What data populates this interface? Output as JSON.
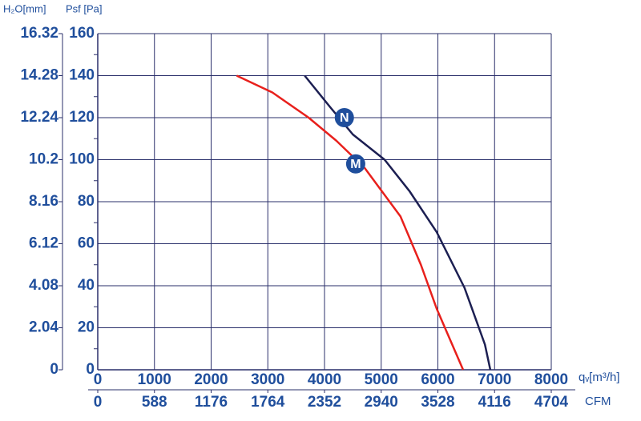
{
  "chart_data": {
    "type": "line",
    "y_label": "Psf [Pa]",
    "y2_label": "H₂O[mm]",
    "x_label": "qᵥ[m³/h]",
    "x2_label": "CFM",
    "xlim": [
      0,
      8000
    ],
    "xticks": [
      0,
      1000,
      2000,
      3000,
      4000,
      5000,
      6000,
      7000,
      8000
    ],
    "ylim": [
      0,
      160
    ],
    "yticks": [
      0,
      20,
      40,
      60,
      80,
      100,
      120,
      140,
      160
    ],
    "y2lim": [
      0,
      16.32
    ],
    "y2ticks": [
      0,
      2.04,
      4.08,
      6.12,
      8.16,
      10.2,
      12.24,
      14.28,
      16.32
    ],
    "x2lim": [
      0,
      4704
    ],
    "x2ticks": [
      0,
      588,
      1176,
      1764,
      2352,
      2940,
      3528,
      4116,
      4704
    ],
    "grid": true,
    "series": [
      {
        "name": "N",
        "color": "#1c1f52",
        "x": [
          3650,
          4100,
          4500,
          5060,
          5500,
          5980,
          6470,
          6830,
          6925
        ],
        "values": [
          140,
          125,
          112,
          100,
          85,
          65.5,
          39,
          12,
          0
        ]
      },
      {
        "name": "M",
        "color": "#e8201c",
        "x": [
          2450,
          3080,
          3720,
          4210,
          4710,
          5340,
          5700,
          5980,
          6445
        ],
        "values": [
          140,
          132,
          120,
          109,
          96,
          73,
          50,
          29,
          0
        ]
      }
    ],
    "annotations": [
      {
        "text": "N",
        "x": 4350,
        "y": 120
      },
      {
        "text": "M",
        "x": 4550,
        "y": 98
      }
    ]
  }
}
